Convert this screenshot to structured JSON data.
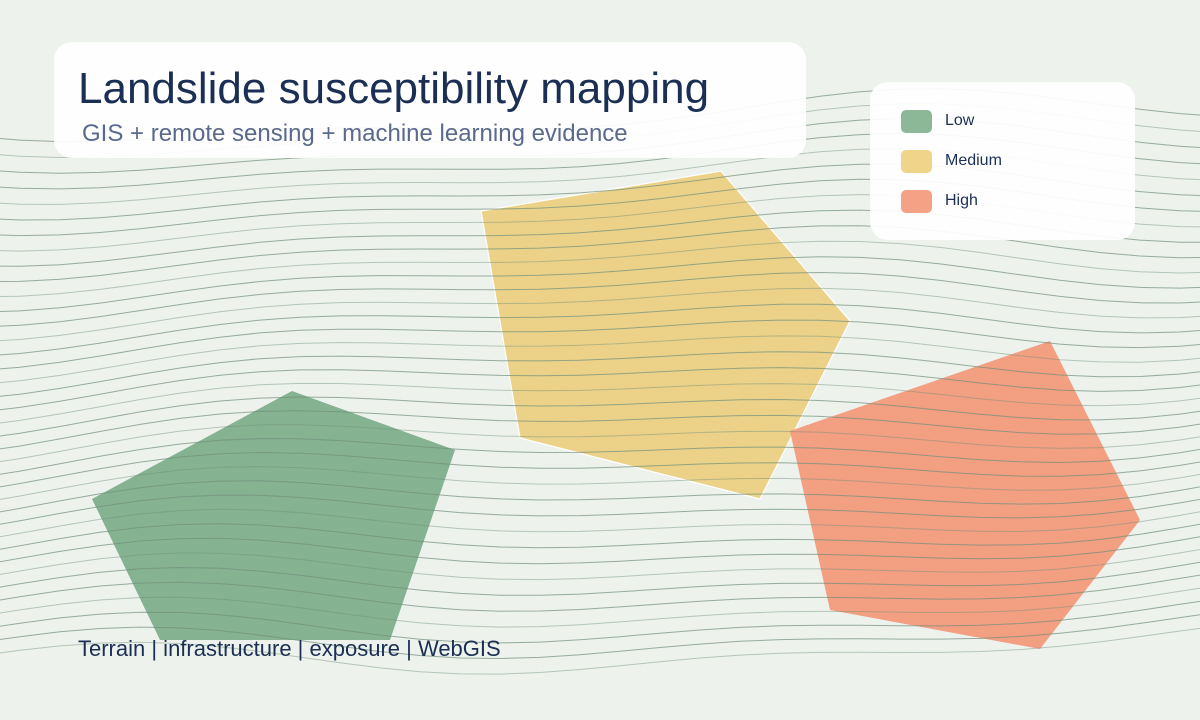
{
  "header": {
    "title": "Landslide susceptibility mapping",
    "subtitle": "GIS + remote sensing + machine learning evidence"
  },
  "legend": {
    "items": [
      {
        "label": "Low",
        "color": "#8db898"
      },
      {
        "label": "Medium",
        "color": "#f0d48a"
      },
      {
        "label": "High",
        "color": "#f5a185"
      }
    ]
  },
  "zones": [
    {
      "class": "Low",
      "color": "#7fae8c"
    },
    {
      "class": "Medium",
      "color": "#ecd083"
    },
    {
      "class": "High",
      "color": "#f29a7c"
    }
  ],
  "contour_color": "#6f8f7a",
  "footer": "Terrain | infrastructure | exposure | WebGIS"
}
